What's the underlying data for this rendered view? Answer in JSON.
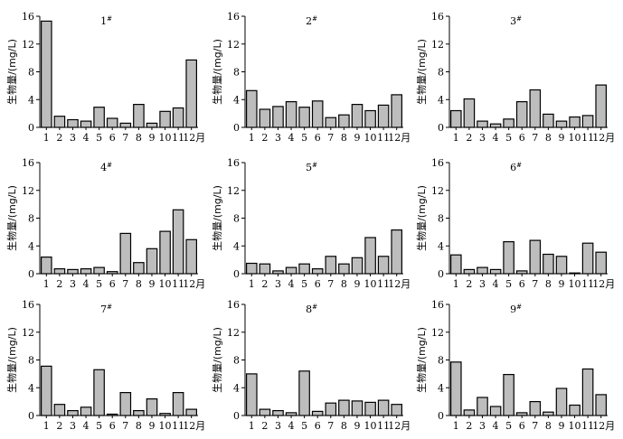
{
  "chart_data": [
    {
      "type": "bar",
      "title": "1",
      "title_sup": "#",
      "categories": [
        "1",
        "2",
        "3",
        "4",
        "5",
        "6",
        "7",
        "8",
        "9",
        "10",
        "11",
        "12"
      ],
      "x_suffix": "月",
      "values": [
        15.3,
        1.6,
        1.1,
        0.9,
        2.9,
        1.3,
        0.6,
        3.3,
        0.6,
        2.3,
        2.8,
        9.7
      ],
      "ylabel": "生物量/(mg/L)",
      "ylim": [
        0,
        16
      ],
      "yticks": [
        0,
        4,
        8,
        12,
        16
      ]
    },
    {
      "type": "bar",
      "title": "2",
      "title_sup": "#",
      "categories": [
        "1",
        "2",
        "3",
        "4",
        "5",
        "6",
        "7",
        "8",
        "9",
        "10",
        "11",
        "12"
      ],
      "x_suffix": "月",
      "values": [
        5.3,
        2.6,
        3.0,
        3.7,
        2.9,
        3.8,
        1.4,
        1.8,
        3.3,
        2.4,
        3.2,
        4.7
      ],
      "ylabel": "生物量/(mg/L)",
      "ylim": [
        0,
        16
      ],
      "yticks": [
        0,
        4,
        8,
        12,
        16
      ]
    },
    {
      "type": "bar",
      "title": "3",
      "title_sup": "#",
      "categories": [
        "1",
        "2",
        "3",
        "4",
        "5",
        "6",
        "7",
        "8",
        "9",
        "10",
        "11",
        "12"
      ],
      "x_suffix": "月",
      "values": [
        2.4,
        4.1,
        0.9,
        0.5,
        1.2,
        3.7,
        5.4,
        1.9,
        0.9,
        1.5,
        1.7,
        6.1
      ],
      "ylabel": "生物量/(mg/L)",
      "ylim": [
        0,
        16
      ],
      "yticks": [
        0,
        4,
        8,
        12,
        16
      ]
    },
    {
      "type": "bar",
      "title": "4",
      "title_sup": "#",
      "categories": [
        "1",
        "2",
        "3",
        "4",
        "5",
        "6",
        "7",
        "8",
        "9",
        "10",
        "11",
        "12"
      ],
      "x_suffix": "月",
      "values": [
        2.4,
        0.7,
        0.6,
        0.7,
        0.9,
        0.3,
        5.8,
        1.6,
        3.6,
        6.1,
        9.2,
        4.9
      ],
      "ylabel": "生物量/(mg/L)",
      "ylim": [
        0,
        16
      ],
      "yticks": [
        0,
        4,
        8,
        12,
        16
      ]
    },
    {
      "type": "bar",
      "title": "5",
      "title_sup": "#",
      "categories": [
        "1",
        "2",
        "3",
        "4",
        "5",
        "6",
        "7",
        "8",
        "9",
        "10",
        "11",
        "12"
      ],
      "x_suffix": "月",
      "values": [
        1.5,
        1.4,
        0.4,
        0.9,
        1.4,
        0.7,
        2.5,
        1.4,
        2.3,
        5.2,
        2.5,
        6.3
      ],
      "ylabel": "生物量/(mg/L)",
      "ylim": [
        0,
        16
      ],
      "yticks": [
        0,
        4,
        8,
        12,
        16
      ]
    },
    {
      "type": "bar",
      "title": "6",
      "title_sup": "#",
      "categories": [
        "1",
        "2",
        "3",
        "4",
        "5",
        "6",
        "7",
        "8",
        "9",
        "10",
        "11",
        "12"
      ],
      "x_suffix": "月",
      "values": [
        2.7,
        0.6,
        0.9,
        0.6,
        4.6,
        0.4,
        4.8,
        2.8,
        2.5,
        0.1,
        4.4,
        3.1
      ],
      "ylabel": "生物量/(mg/L)",
      "ylim": [
        0,
        16
      ],
      "yticks": [
        0,
        4,
        8,
        12,
        16
      ]
    },
    {
      "type": "bar",
      "title": "7",
      "title_sup": "#",
      "categories": [
        "1",
        "2",
        "3",
        "4",
        "5",
        "6",
        "7",
        "8",
        "9",
        "10",
        "11",
        "12"
      ],
      "x_suffix": "月",
      "values": [
        7.1,
        1.6,
        0.7,
        1.2,
        6.6,
        0.2,
        3.3,
        0.7,
        2.4,
        0.3,
        3.3,
        0.9
      ],
      "ylabel": "生物量/(mg/L)",
      "ylim": [
        0,
        16
      ],
      "yticks": [
        0,
        4,
        8,
        12,
        16
      ]
    },
    {
      "type": "bar",
      "title": "8",
      "title_sup": "#",
      "categories": [
        "1",
        "2",
        "3",
        "4",
        "5",
        "6",
        "7",
        "8",
        "9",
        "10",
        "11",
        "12"
      ],
      "x_suffix": "月",
      "values": [
        6.0,
        0.9,
        0.7,
        0.4,
        6.4,
        0.6,
        1.8,
        2.2,
        2.1,
        1.9,
        2.2,
        1.6
      ],
      "ylabel": "生物量/(mg/L)",
      "ylim": [
        0,
        16
      ],
      "yticks": [
        0,
        4,
        8,
        12,
        16
      ]
    },
    {
      "type": "bar",
      "title": "9",
      "title_sup": "#",
      "categories": [
        "1",
        "2",
        "3",
        "4",
        "5",
        "6",
        "7",
        "8",
        "9",
        "10",
        "11",
        "12"
      ],
      "x_suffix": "月",
      "values": [
        7.7,
        0.8,
        2.6,
        1.3,
        5.9,
        0.4,
        2.0,
        0.5,
        3.9,
        1.5,
        6.7,
        3.0
      ],
      "ylabel": "生物量/(mg/L)",
      "ylim": [
        0,
        16
      ],
      "yticks": [
        0,
        4,
        8,
        12,
        16
      ]
    }
  ]
}
